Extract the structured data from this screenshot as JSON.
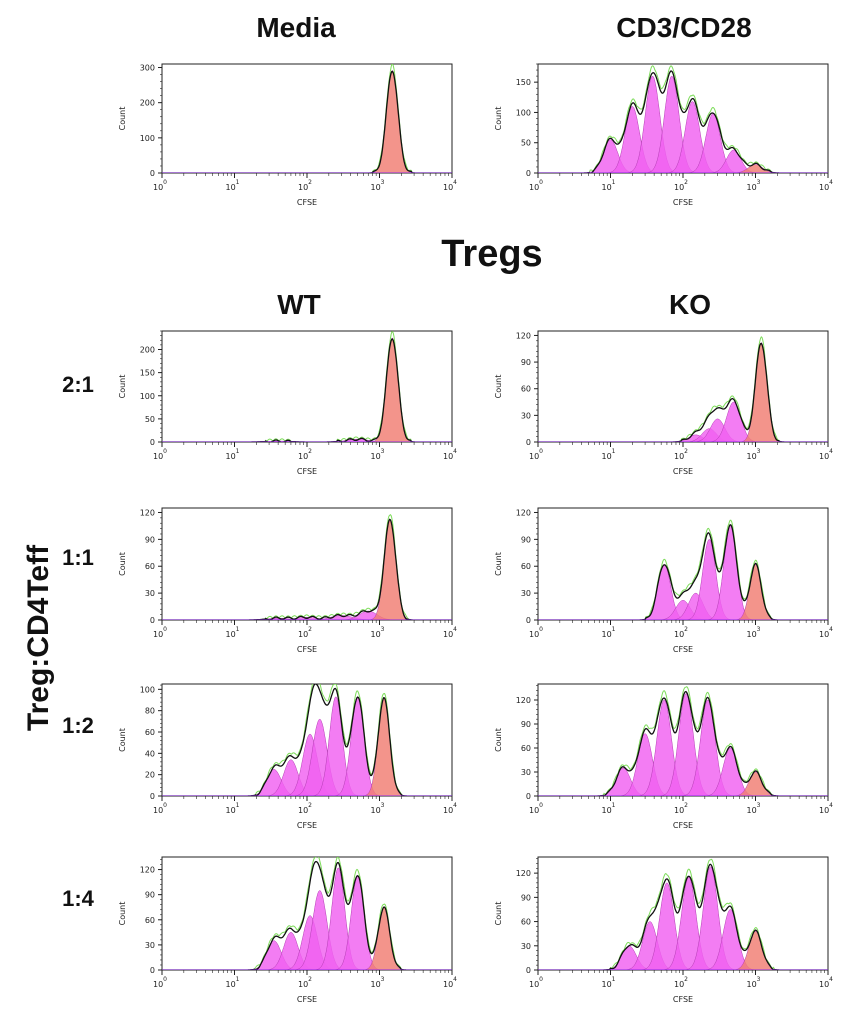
{
  "headers": {
    "col_top_left": "Media",
    "col_top_right": "CD3/CD28",
    "section": "Tregs",
    "col_wt": "WT",
    "col_ko": "KO",
    "row_axis": "Treg:CD4Teff",
    "rows": [
      "2:1",
      "1:1",
      "1:2",
      "1:4"
    ]
  },
  "colors": {
    "ko_label": "#e8001c",
    "undivided": "#f07c72",
    "divided": "#f060f0",
    "fit_line": "#7ddc5a",
    "data_line": "#111111"
  },
  "chart_data": [
    {
      "type": "area",
      "panel": "Media",
      "xlabel": "CFSE",
      "ylabel": "Count",
      "xscale": "log",
      "xlim": [
        1,
        10000
      ],
      "ylim": [
        0,
        310
      ],
      "yticks": [
        0,
        100,
        200,
        300
      ],
      "series": [
        {
          "name": "",
          "peaks": [
            {
              "x": 1500,
              "height": 292,
              "width": 0.08,
              "kind": "undivided"
            }
          ]
        }
      ]
    },
    {
      "type": "area",
      "panel": "CD3/CD28",
      "xlabel": "CFSE",
      "ylabel": "Count",
      "xscale": "log",
      "xlim": [
        1,
        10000
      ],
      "ylim": [
        0,
        180
      ],
      "yticks": [
        0,
        50,
        100,
        150
      ],
      "series": [
        {
          "name": "",
          "peaks": [
            {
              "x": 10,
              "height": 55,
              "width": 0.1,
              "kind": "divided"
            },
            {
              "x": 20,
              "height": 110,
              "width": 0.1,
              "kind": "divided"
            },
            {
              "x": 38,
              "height": 160,
              "width": 0.1,
              "kind": "divided"
            },
            {
              "x": 70,
              "height": 160,
              "width": 0.1,
              "kind": "divided"
            },
            {
              "x": 135,
              "height": 118,
              "width": 0.1,
              "kind": "divided"
            },
            {
              "x": 260,
              "height": 98,
              "width": 0.1,
              "kind": "divided"
            },
            {
              "x": 500,
              "height": 38,
              "width": 0.1,
              "kind": "divided"
            },
            {
              "x": 1000,
              "height": 14,
              "width": 0.1,
              "kind": "undivided"
            }
          ]
        }
      ]
    },
    {
      "type": "area",
      "panel": "WT 2:1",
      "xlabel": "CFSE",
      "ylabel": "Count",
      "xscale": "log",
      "xlim": [
        1,
        10000
      ],
      "ylim": [
        0,
        240
      ],
      "yticks": [
        0,
        50,
        100,
        150,
        200
      ],
      "series": [
        {
          "name": "",
          "peaks": [
            {
              "x": 40,
              "height": 2,
              "width": 0.15,
              "kind": "divided"
            },
            {
              "x": 500,
              "height": 6,
              "width": 0.15,
              "kind": "divided"
            },
            {
              "x": 1500,
              "height": 225,
              "width": 0.08,
              "kind": "undivided"
            }
          ]
        }
      ]
    },
    {
      "type": "area",
      "panel": "KO 2:1",
      "xlabel": "CFSE",
      "ylabel": "Count",
      "xscale": "log",
      "xlim": [
        1,
        10000
      ],
      "ylim": [
        0,
        125
      ],
      "yticks": [
        0,
        30,
        60,
        90,
        120
      ],
      "series": [
        {
          "name": "",
          "peaks": [
            {
              "x": 150,
              "height": 8,
              "width": 0.1,
              "kind": "divided"
            },
            {
              "x": 230,
              "height": 15,
              "width": 0.1,
              "kind": "divided"
            },
            {
              "x": 300,
              "height": 26,
              "width": 0.1,
              "kind": "divided"
            },
            {
              "x": 500,
              "height": 45,
              "width": 0.1,
              "kind": "divided"
            },
            {
              "x": 1200,
              "height": 112,
              "width": 0.08,
              "kind": "undivided"
            }
          ]
        }
      ]
    },
    {
      "type": "area",
      "panel": "WT 1:1",
      "xlabel": "CFSE",
      "ylabel": "Count",
      "xscale": "log",
      "xlim": [
        1,
        10000
      ],
      "ylim": [
        0,
        125
      ],
      "yticks": [
        0,
        30,
        60,
        90,
        120
      ],
      "series": [
        {
          "name": "",
          "peaks": [
            {
              "x": 40,
              "height": 2,
              "width": 0.15,
              "kind": "divided"
            },
            {
              "x": 100,
              "height": 3,
              "width": 0.15,
              "kind": "divided"
            },
            {
              "x": 300,
              "height": 5,
              "width": 0.15,
              "kind": "divided"
            },
            {
              "x": 700,
              "height": 10,
              "width": 0.12,
              "kind": "divided"
            },
            {
              "x": 1400,
              "height": 112,
              "width": 0.08,
              "kind": "undivided"
            }
          ]
        }
      ]
    },
    {
      "type": "area",
      "panel": "KO 1:1",
      "xlabel": "CFSE",
      "ylabel": "Count",
      "xscale": "log",
      "xlim": [
        1,
        10000
      ],
      "ylim": [
        0,
        125
      ],
      "yticks": [
        0,
        30,
        60,
        90,
        120
      ],
      "series": [
        {
          "name": "",
          "peaks": [
            {
              "x": 55,
              "height": 62,
              "width": 0.09,
              "kind": "divided"
            },
            {
              "x": 100,
              "height": 22,
              "width": 0.1,
              "kind": "divided"
            },
            {
              "x": 150,
              "height": 30,
              "width": 0.1,
              "kind": "divided"
            },
            {
              "x": 230,
              "height": 90,
              "width": 0.09,
              "kind": "divided"
            },
            {
              "x": 450,
              "height": 105,
              "width": 0.09,
              "kind": "divided"
            },
            {
              "x": 1000,
              "height": 62,
              "width": 0.08,
              "kind": "undivided"
            }
          ]
        }
      ]
    },
    {
      "type": "area",
      "panel": "WT 1:2",
      "xlabel": "CFSE",
      "ylabel": "Count",
      "xscale": "log",
      "xlim": [
        1,
        10000
      ],
      "ylim": [
        0,
        105
      ],
      "yticks": [
        0,
        20,
        40,
        60,
        80,
        100
      ],
      "series": [
        {
          "name": "",
          "peaks": [
            {
              "x": 35,
              "height": 25,
              "width": 0.1,
              "kind": "divided"
            },
            {
              "x": 60,
              "height": 34,
              "width": 0.1,
              "kind": "divided"
            },
            {
              "x": 110,
              "height": 58,
              "width": 0.1,
              "kind": "divided"
            },
            {
              "x": 150,
              "height": 72,
              "width": 0.1,
              "kind": "divided"
            },
            {
              "x": 250,
              "height": 93,
              "width": 0.09,
              "kind": "divided"
            },
            {
              "x": 500,
              "height": 93,
              "width": 0.09,
              "kind": "divided"
            },
            {
              "x": 1150,
              "height": 92,
              "width": 0.08,
              "kind": "undivided"
            }
          ]
        }
      ]
    },
    {
      "type": "area",
      "panel": "KO 1:2",
      "xlabel": "CFSE",
      "ylabel": "Count",
      "xscale": "log",
      "xlim": [
        1,
        10000
      ],
      "ylim": [
        0,
        140
      ],
      "yticks": [
        0,
        30,
        60,
        90,
        120
      ],
      "series": [
        {
          "name": "",
          "peaks": [
            {
              "x": 15,
              "height": 35,
              "width": 0.1,
              "kind": "divided"
            },
            {
              "x": 30,
              "height": 78,
              "width": 0.1,
              "kind": "divided"
            },
            {
              "x": 55,
              "height": 120,
              "width": 0.1,
              "kind": "divided"
            },
            {
              "x": 110,
              "height": 128,
              "width": 0.1,
              "kind": "divided"
            },
            {
              "x": 220,
              "height": 120,
              "width": 0.1,
              "kind": "divided"
            },
            {
              "x": 450,
              "height": 60,
              "width": 0.1,
              "kind": "divided"
            },
            {
              "x": 1000,
              "height": 30,
              "width": 0.09,
              "kind": "undivided"
            }
          ]
        }
      ]
    },
    {
      "type": "area",
      "panel": "WT 1:4",
      "xlabel": "CFSE",
      "ylabel": "Count",
      "xscale": "log",
      "xlim": [
        1,
        10000
      ],
      "ylim": [
        0,
        135
      ],
      "yticks": [
        0,
        30,
        60,
        90,
        120
      ],
      "series": [
        {
          "name": "",
          "peaks": [
            {
              "x": 35,
              "height": 35,
              "width": 0.1,
              "kind": "divided"
            },
            {
              "x": 60,
              "height": 45,
              "width": 0.1,
              "kind": "divided"
            },
            {
              "x": 110,
              "height": 65,
              "width": 0.1,
              "kind": "divided"
            },
            {
              "x": 150,
              "height": 95,
              "width": 0.1,
              "kind": "divided"
            },
            {
              "x": 270,
              "height": 122,
              "width": 0.09,
              "kind": "divided"
            },
            {
              "x": 500,
              "height": 112,
              "width": 0.09,
              "kind": "divided"
            },
            {
              "x": 1150,
              "height": 75,
              "width": 0.08,
              "kind": "undivided"
            }
          ]
        }
      ]
    },
    {
      "type": "area",
      "panel": "KO 1:4",
      "xlabel": "CFSE",
      "ylabel": "Count",
      "xscale": "log",
      "xlim": [
        1,
        10000
      ],
      "ylim": [
        0,
        140
      ],
      "yticks": [
        0,
        30,
        60,
        90,
        120
      ],
      "series": [
        {
          "name": "",
          "peaks": [
            {
              "x": 18,
              "height": 30,
              "width": 0.1,
              "kind": "divided"
            },
            {
              "x": 35,
              "height": 60,
              "width": 0.1,
              "kind": "divided"
            },
            {
              "x": 60,
              "height": 108,
              "width": 0.1,
              "kind": "divided"
            },
            {
              "x": 120,
              "height": 115,
              "width": 0.1,
              "kind": "divided"
            },
            {
              "x": 240,
              "height": 128,
              "width": 0.1,
              "kind": "divided"
            },
            {
              "x": 450,
              "height": 75,
              "width": 0.1,
              "kind": "divided"
            },
            {
              "x": 1000,
              "height": 48,
              "width": 0.09,
              "kind": "undivided"
            }
          ]
        }
      ]
    }
  ]
}
